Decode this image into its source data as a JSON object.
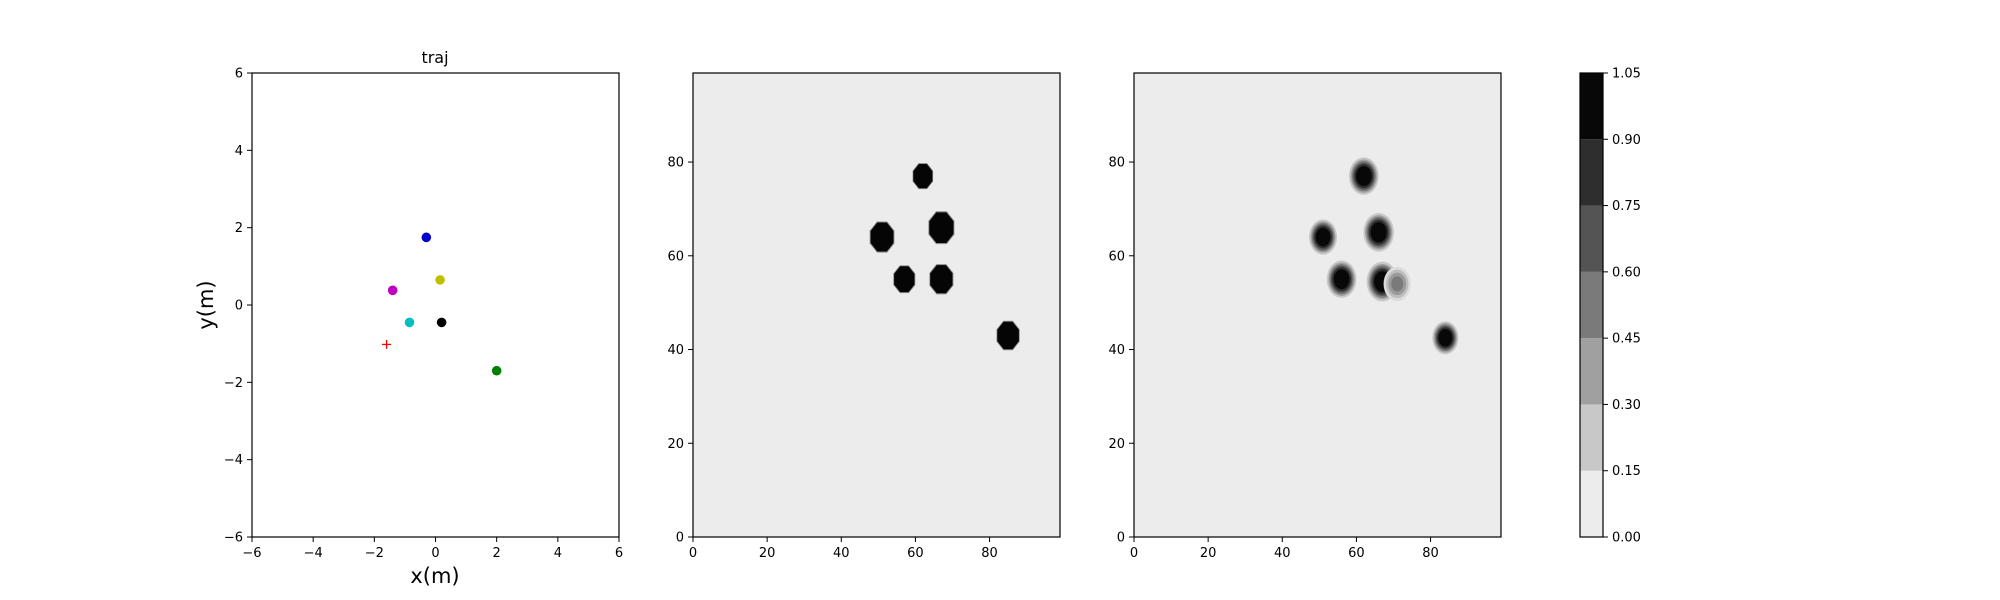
{
  "chart_data": [
    {
      "type": "scatter",
      "title": "traj",
      "xlabel": "x(m)",
      "ylabel": "y(m)",
      "xlim": [
        -6,
        6
      ],
      "ylim": [
        -6,
        6
      ],
      "xticks": [
        -6,
        -4,
        -2,
        0,
        2,
        4,
        6
      ],
      "yticks": [
        -6,
        -4,
        -2,
        0,
        2,
        4,
        6
      ],
      "grid": false,
      "points": [
        {
          "x": -0.3,
          "y": 1.75,
          "color": "#0000cc",
          "marker": "circle"
        },
        {
          "x": 0.15,
          "y": 0.65,
          "color": "#bfbf00",
          "marker": "circle"
        },
        {
          "x": -1.4,
          "y": 0.38,
          "color": "#bf00bf",
          "marker": "circle"
        },
        {
          "x": -0.85,
          "y": -0.45,
          "color": "#00bfbf",
          "marker": "circle"
        },
        {
          "x": 0.2,
          "y": -0.45,
          "color": "#000000",
          "marker": "circle"
        },
        {
          "x": 2.0,
          "y": -1.7,
          "color": "#007f00",
          "marker": "circle"
        },
        {
          "x": -1.6,
          "y": -1.02,
          "color": "#ff0000",
          "marker": "plus"
        }
      ]
    },
    {
      "type": "heatmap",
      "title": "",
      "xlim": [
        0,
        99
      ],
      "ylim": [
        0,
        99
      ],
      "xticks": [
        0,
        20,
        40,
        60,
        80
      ],
      "yticks": [
        0,
        20,
        40,
        60,
        80
      ],
      "background_value": 0.05,
      "blobs": [
        {
          "x": 62,
          "y": 77,
          "r": 3.0,
          "sharp": true
        },
        {
          "x": 51,
          "y": 64,
          "r": 3.6,
          "sharp": true
        },
        {
          "x": 67,
          "y": 66,
          "r": 3.8,
          "sharp": true
        },
        {
          "x": 57,
          "y": 55,
          "r": 3.2,
          "sharp": true
        },
        {
          "x": 67,
          "y": 55,
          "r": 3.5,
          "sharp": true
        },
        {
          "x": 85,
          "y": 43,
          "r": 3.4,
          "sharp": true
        }
      ]
    },
    {
      "type": "heatmap",
      "title": "",
      "xlim": [
        0,
        99
      ],
      "ylim": [
        0,
        99
      ],
      "xticks": [
        0,
        20,
        40,
        60,
        80
      ],
      "yticks": [
        0,
        20,
        40,
        60,
        80
      ],
      "background_value": 0.05,
      "blobs": [
        {
          "x": 62,
          "y": 77,
          "r": 3.4,
          "sharp": false
        },
        {
          "x": 51,
          "y": 64,
          "r": 3.2,
          "sharp": false
        },
        {
          "x": 66,
          "y": 65,
          "r": 3.5,
          "sharp": false
        },
        {
          "x": 56,
          "y": 55,
          "r": 3.4,
          "sharp": false
        },
        {
          "x": 67,
          "y": 54.5,
          "r": 3.6,
          "sharp": false
        },
        {
          "x": 71,
          "y": 54,
          "r": 3.2,
          "sharp": false,
          "faint": true
        },
        {
          "x": 84,
          "y": 42.5,
          "r": 3.0,
          "sharp": false
        }
      ]
    },
    {
      "type": "colorbar",
      "levels": [
        0.0,
        0.15,
        0.3,
        0.45,
        0.6,
        0.75,
        0.9,
        1.05
      ],
      "tick_labels": [
        "0.00",
        "0.15",
        "0.30",
        "0.45",
        "0.60",
        "0.75",
        "0.90",
        "1.05"
      ],
      "colors": [
        "#ececec",
        "#c8c8c8",
        "#a0a0a0",
        "#7a7a7a",
        "#545454",
        "#2e2e2e",
        "#080808"
      ]
    }
  ]
}
